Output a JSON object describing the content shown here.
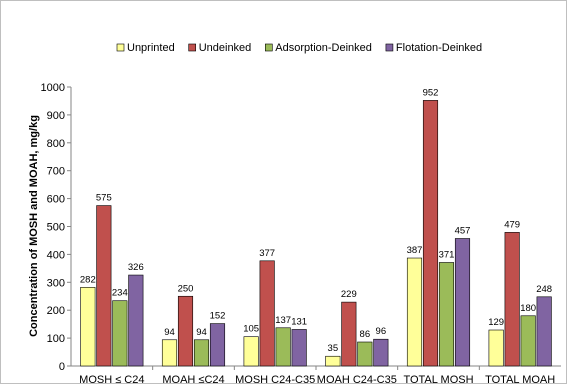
{
  "chart_data": {
    "type": "bar",
    "title": "",
    "xlabel": "",
    "ylabel": "Concentration of MOSH and MOAH, mg/kg",
    "ylim": [
      0,
      1000
    ],
    "yticks": [
      0,
      100,
      200,
      300,
      400,
      500,
      600,
      700,
      800,
      900,
      1000
    ],
    "grid": false,
    "legend_position": "top",
    "categories": [
      "MOSH ≤ C24",
      "MOAH ≤C24",
      "MOSH C24-C35",
      "MOAH C24-C35",
      "TOTAL MOSH",
      "TOTAL MOAH"
    ],
    "series": [
      {
        "name": "Unprinted",
        "color": "#ffff99",
        "values": [
          282,
          94,
          105,
          35,
          387,
          129
        ]
      },
      {
        "name": "Undeinked",
        "color": "#c0504d",
        "values": [
          575,
          250,
          377,
          229,
          952,
          479
        ]
      },
      {
        "name": "Adsorption-Deinked",
        "color": "#9bbb59",
        "values": [
          234,
          94,
          137,
          86,
          371,
          180
        ]
      },
      {
        "name": "Flotation-Deinked",
        "color": "#8064a2",
        "values": [
          326,
          152,
          131,
          96,
          457,
          248
        ]
      }
    ]
  }
}
